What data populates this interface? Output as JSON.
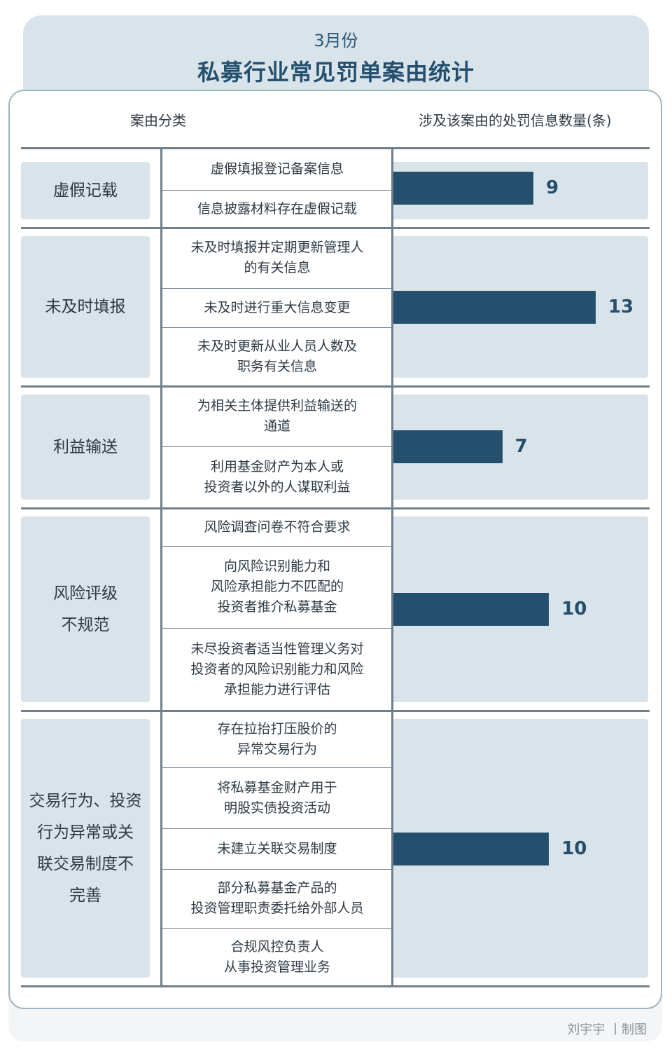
{
  "header": {
    "subtitle": "3月份",
    "title": "私募行业常见罚单案由统计"
  },
  "columns": {
    "category": "案由分类",
    "count": "涉及该案由的处罚信息数量(条)"
  },
  "chart_data": {
    "type": "bar",
    "categories": [
      "虚假记载",
      "未及时填报",
      "利益输送",
      "风险评级不规范",
      "交易行为、投资行为异常或关联交易制度不完善"
    ],
    "values": [
      9,
      13,
      7,
      10,
      10
    ],
    "groups": [
      {
        "category": "虚假记载",
        "value": 9,
        "reasons": [
          "虚假填报登记备案信息",
          "信息披露材料存在虚假记载"
        ]
      },
      {
        "category": "未及时填报",
        "value": 13,
        "reasons": [
          "未及时填报并定期更新管理人\n的有关信息",
          "未及时进行重大信息变更",
          "未及时更新从业人员人数及\n职务有关信息"
        ]
      },
      {
        "category": "利益输送",
        "value": 7,
        "reasons": [
          "为相关主体提供利益输送的\n通道",
          "利用基金财产为本人或\n投资者以外的人谋取利益"
        ]
      },
      {
        "category": "风险评级\n不规范",
        "value": 10,
        "reasons": [
          "风险调查问卷不符合要求",
          "向风险识别能力和\n风险承担能力不匹配的\n投资者推介私募基金",
          "未尽投资者适当性管理义务对\n投资者的风险识别能力和风险\n承担能力进行评估"
        ]
      },
      {
        "category": "交易行为、投资\n行为异常或关\n联交易制度不\n完善",
        "value": 10,
        "reasons": [
          "存在拉抬打压股价的\n异常交易行为",
          "将私募基金财产用于\n明股实债投资活动",
          "未建立关联交易制度",
          "部分私募基金产品的\n投资管理职责委托给外部人员",
          "合规风控负责人\n从事投资管理业务"
        ]
      }
    ]
  },
  "credit": "刘宇宇 丨制图"
}
